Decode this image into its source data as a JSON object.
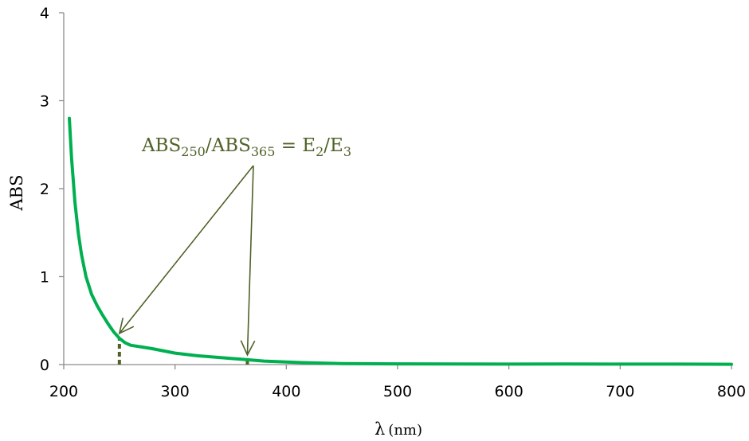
{
  "chart_data": {
    "type": "line",
    "xlabel": "λ (nm)",
    "xlabel_main": "λ",
    "xlabel_unit": "(nm)",
    "ylabel": "ABS",
    "xlim": [
      200,
      800
    ],
    "ylim": [
      0,
      4
    ],
    "x_ticks": [
      200,
      300,
      400,
      500,
      600,
      700,
      800
    ],
    "y_ticks": [
      0,
      1,
      2,
      3,
      4
    ],
    "x_tick_labels": [
      "200",
      "300",
      "400",
      "500",
      "600",
      "700",
      "800"
    ],
    "y_tick_labels": [
      "0",
      "1",
      "2",
      "3",
      "4"
    ],
    "grid": false,
    "legend": "none",
    "series": [
      {
        "color": "#00b050",
        "x": [
          205,
          207,
          210,
          213,
          216,
          220,
          225,
          230,
          235,
          240,
          245,
          250,
          255,
          260,
          270,
          280,
          300,
          320,
          350,
          365,
          380,
          400,
          420,
          450,
          500,
          550,
          600,
          650,
          700,
          750,
          800
        ],
        "y": [
          2.8,
          2.35,
          1.85,
          1.5,
          1.25,
          1.0,
          0.8,
          0.67,
          0.56,
          0.46,
          0.37,
          0.3,
          0.25,
          0.22,
          0.2,
          0.18,
          0.13,
          0.1,
          0.07,
          0.055,
          0.04,
          0.03,
          0.02,
          0.012,
          0.008,
          0.006,
          0.005,
          0.006,
          0.005,
          0.005,
          0.004
        ]
      }
    ],
    "markers": [
      {
        "x": 250,
        "y": 0.3
      },
      {
        "x": 365,
        "y": 0.055
      }
    ],
    "annotation": {
      "color": "#4f6228",
      "parts": [
        {
          "text": "ABS",
          "sub": false
        },
        {
          "text": "250",
          "sub": true
        },
        {
          "text": "/ABS",
          "sub": false
        },
        {
          "text": "365",
          "sub": true
        },
        {
          "text": " = E",
          "sub": false
        },
        {
          "text": "2",
          "sub": true
        },
        {
          "text": "/E",
          "sub": false
        },
        {
          "text": "3",
          "sub": true
        }
      ]
    }
  }
}
